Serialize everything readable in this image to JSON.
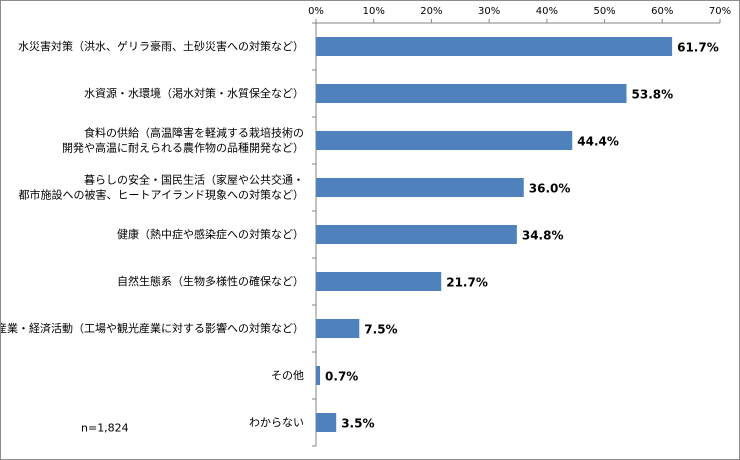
{
  "chart_data": {
    "type": "bar",
    "orientation": "horizontal",
    "title": "",
    "xlabel": "",
    "ylabel": "",
    "xlim": [
      0,
      70
    ],
    "x_ticks": [
      "0%",
      "10%",
      "20%",
      "30%",
      "40%",
      "50%",
      "60%",
      "70%"
    ],
    "x_axis_position": "top",
    "grid": false,
    "legend": "none",
    "bar_color": "#4f81bd",
    "categories": [
      [
        "水災害対策（洪水、ゲリラ豪雨、土砂災害への対策など）"
      ],
      [
        "水資源・水環境（渇水対策・水質保全など）"
      ],
      [
        "食料の供給（高温障害を軽減する栽培技術の",
        "開発や高温に耐えられる農作物の品種開発など）"
      ],
      [
        "暮らしの安全・国民生活（家屋や公共交通・",
        "都市施設への被害、ヒートアイランド現象への対策など）"
      ],
      [
        "健康（熱中症や感染症への対策など）"
      ],
      [
        "自然生態系（生物多様性の確保など）"
      ],
      [
        "産業・経済活動（工場や観光産業に対する影響への対策など）"
      ],
      [
        "その他"
      ],
      [
        "わからない"
      ]
    ],
    "values": [
      61.7,
      53.8,
      44.4,
      36.0,
      34.8,
      21.7,
      7.5,
      0.7,
      3.5
    ],
    "data_labels": [
      "61.7%",
      "53.8%",
      "44.4%",
      "36.0%",
      "34.8%",
      "21.7%",
      "7.5%",
      "0.7%",
      "3.5%"
    ],
    "note": "n=1,824"
  }
}
